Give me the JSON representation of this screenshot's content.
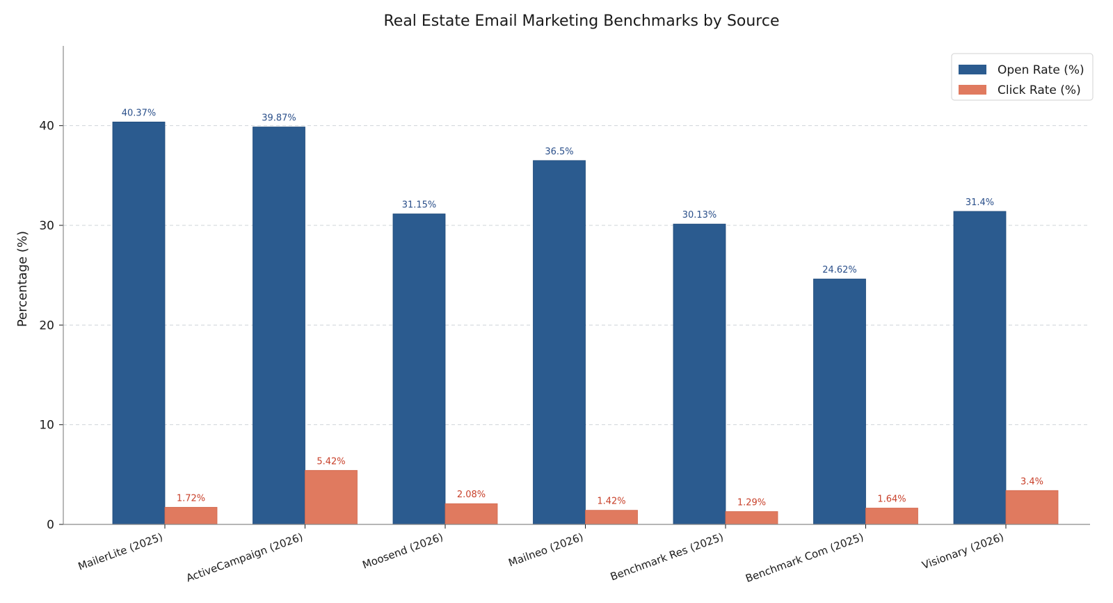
{
  "chart_data": {
    "type": "bar",
    "title": "Real Estate Email Marketing Benchmarks by Source",
    "xlabel": "",
    "ylabel": "Percentage (%)",
    "ylim": [
      0,
      48
    ],
    "yticks": [
      0,
      10,
      20,
      30,
      40
    ],
    "grid": "horizontal dashed",
    "legend_position": "top-right",
    "categories": [
      "MailerLite (2025)",
      "ActiveCampaign (2026)",
      "Moosend (2026)",
      "Mailneo (2026)",
      "Benchmark Res (2025)",
      "Benchmark Com (2025)",
      "Visionary (2026)"
    ],
    "series": [
      {
        "name": "Open Rate (%)",
        "color": "#2b5b8f",
        "label_color": "#2a4f8a",
        "values": [
          40.37,
          39.87,
          31.15,
          36.5,
          30.13,
          24.62,
          31.4
        ],
        "data_labels": [
          "40.37%",
          "39.87%",
          "31.15%",
          "36.5%",
          "30.13%",
          "24.62%",
          "31.4%"
        ]
      },
      {
        "name": "Click Rate (%)",
        "color": "#e07a5f",
        "label_color": "#c8402a",
        "values": [
          1.72,
          5.42,
          2.08,
          1.42,
          1.29,
          1.64,
          3.4
        ],
        "data_labels": [
          "1.72%",
          "5.42%",
          "2.08%",
          "1.42%",
          "1.29%",
          "1.64%",
          "3.4%"
        ]
      }
    ]
  }
}
